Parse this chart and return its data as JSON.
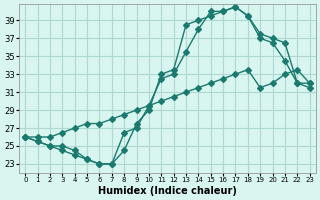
{
  "xlabel": "Humidex (Indice chaleur)",
  "ylabel": "",
  "bg_color": "#d8f5f0",
  "grid_color": "#b0d8d0",
  "line_color": "#1a7a6e",
  "xlim": [
    -0.5,
    23.5
  ],
  "ylim": [
    22,
    40
  ],
  "yticks": [
    23,
    25,
    27,
    29,
    31,
    33,
    35,
    37,
    39
  ],
  "xticks": [
    0,
    1,
    2,
    3,
    4,
    5,
    6,
    7,
    8,
    9,
    10,
    11,
    12,
    13,
    14,
    15,
    16,
    17,
    18,
    19,
    20,
    21,
    22,
    23
  ],
  "line1_x": [
    0,
    1,
    2,
    3,
    4,
    5,
    6,
    7,
    8,
    9,
    10,
    11,
    12,
    13,
    14,
    15,
    16,
    17,
    18,
    19,
    20,
    21,
    22,
    23
  ],
  "line1_y": [
    26.0,
    25.5,
    25.0,
    24.5,
    24.0,
    23.5,
    23.0,
    23.0,
    26.5,
    27.0,
    29.5,
    32.5,
    33.0,
    35.5,
    38.0,
    40.0,
    40.0,
    40.5,
    39.5,
    37.0,
    36.5,
    34.5,
    32.0,
    31.5
  ],
  "line2_x": [
    0,
    1,
    2,
    3,
    4,
    5,
    6,
    7,
    8,
    9,
    10,
    11,
    12,
    13,
    14,
    15,
    16,
    17,
    18,
    19,
    20,
    21,
    22,
    23
  ],
  "line2_y": [
    26.0,
    25.5,
    25.0,
    25.0,
    24.5,
    23.5,
    23.0,
    23.0,
    24.5,
    27.5,
    29.0,
    33.0,
    33.5,
    38.5,
    39.0,
    39.5,
    40.0,
    40.5,
    39.5,
    37.5,
    37.0,
    36.5,
    32.0,
    32.0
  ],
  "line3_x": [
    0,
    1,
    2,
    3,
    4,
    5,
    6,
    7,
    8,
    9,
    10,
    11,
    12,
    13,
    14,
    15,
    16,
    17,
    18,
    19,
    20,
    21,
    22,
    23
  ],
  "line3_y": [
    26.0,
    26.0,
    26.0,
    26.5,
    27.0,
    27.5,
    27.5,
    28.0,
    28.5,
    29.0,
    29.5,
    30.0,
    30.5,
    31.0,
    31.5,
    32.0,
    32.5,
    33.0,
    33.5,
    31.5,
    32.0,
    33.0,
    33.5,
    32.0
  ]
}
